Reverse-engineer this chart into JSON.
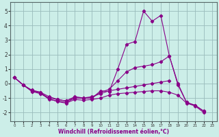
{
  "xlabel": "Windchill (Refroidissement éolien,°C)",
  "bg_color": "#cceee8",
  "grid_color": "#99bbbb",
  "line_color": "#880088",
  "xlim": [
    -0.5,
    23.5
  ],
  "ylim": [
    -2.6,
    5.6
  ],
  "yticks": [
    -2,
    -1,
    0,
    1,
    2,
    3,
    4,
    5
  ],
  "xticks": [
    0,
    1,
    2,
    3,
    4,
    5,
    6,
    7,
    8,
    9,
    10,
    11,
    12,
    13,
    14,
    15,
    16,
    17,
    18,
    19,
    20,
    21,
    22,
    23
  ],
  "lines": [
    {
      "x": [
        0,
        1,
        2,
        3,
        4,
        5,
        6,
        7,
        8,
        9,
        10,
        11,
        12,
        13,
        14,
        15,
        16,
        17,
        18,
        19,
        20,
        21,
        22
      ],
      "y": [
        0.4,
        -0.1,
        -0.5,
        -0.6,
        -1.1,
        -1.2,
        -1.3,
        -1.0,
        -1.0,
        -1.0,
        -0.5,
        -0.55,
        1.0,
        2.7,
        2.9,
        5.0,
        4.3,
        4.7,
        1.9,
        -0.1,
        -1.3,
        -1.5,
        -1.9
      ]
    },
    {
      "x": [
        0,
        1,
        2,
        3,
        4,
        5,
        6,
        7,
        8,
        9,
        10,
        11,
        12,
        13,
        14,
        15,
        16,
        17,
        18,
        19,
        20,
        21,
        22
      ],
      "y": [
        0.4,
        -0.1,
        -0.5,
        -0.65,
        -1.0,
        -1.1,
        -1.2,
        -1.0,
        -1.0,
        -1.0,
        -0.6,
        -0.4,
        0.2,
        0.8,
        1.1,
        1.2,
        1.3,
        1.5,
        1.9,
        0.0,
        -1.3,
        -1.5,
        -1.9
      ]
    },
    {
      "x": [
        0,
        1,
        2,
        3,
        4,
        5,
        6,
        7,
        8,
        9,
        10,
        11,
        12,
        13,
        14,
        15,
        16,
        17,
        18
      ],
      "y": [
        0.4,
        -0.1,
        -0.45,
        -0.6,
        -0.9,
        -1.1,
        -1.2,
        -0.9,
        -1.0,
        -0.9,
        -0.7,
        -0.5,
        -0.4,
        -0.3,
        -0.2,
        -0.1,
        0.0,
        0.1,
        0.2
      ]
    },
    {
      "x": [
        0,
        1,
        2,
        3,
        4,
        5,
        6,
        7,
        8,
        9,
        10,
        11,
        12,
        13,
        14,
        15,
        16,
        17,
        18,
        19,
        20,
        21,
        22
      ],
      "y": [
        0.4,
        -0.1,
        -0.55,
        -0.7,
        -1.05,
        -1.25,
        -1.35,
        -1.1,
        -1.15,
        -1.1,
        -1.0,
        -0.8,
        -0.7,
        -0.65,
        -0.6,
        -0.55,
        -0.5,
        -0.5,
        -0.6,
        -0.8,
        -1.35,
        -1.55,
        -2.0
      ]
    }
  ]
}
